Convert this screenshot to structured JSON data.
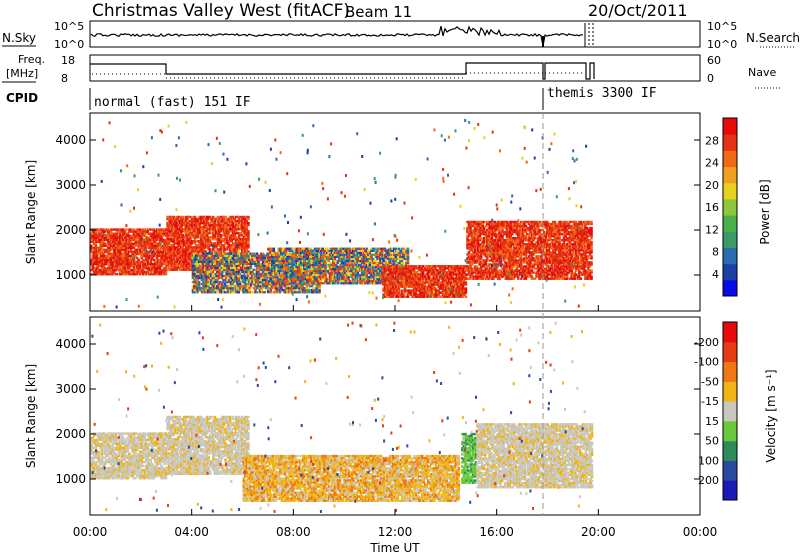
{
  "header": {
    "title": "Christmas Valley West (fitACF)",
    "beam": "Beam 11",
    "date": "20/Oct/2011"
  },
  "top_panels": {
    "nsky": {
      "left_label": "N.Sky",
      "ticks": [
        "10^5",
        "10^0"
      ],
      "right_label": "N.Search",
      "right_ticks": [
        "10^5",
        "10^0"
      ]
    },
    "freq": {
      "left_label_1": "Freq.",
      "left_label_2": "[MHz]",
      "ticks": [
        "18",
        "8"
      ],
      "right_label": "Nave",
      "right_ticks": [
        "60",
        "0"
      ]
    },
    "cpid": {
      "label": "CPID",
      "segments": [
        "normal (fast) 151 IF",
        "themis 3300 IF"
      ]
    }
  },
  "x_axis": {
    "label": "Time UT",
    "ticks": [
      "00:00",
      "04:00",
      "08:00",
      "12:00",
      "16:00",
      "20:00",
      "00:00"
    ]
  },
  "chart_data": [
    {
      "type": "heatmap",
      "panel": "power",
      "ylabel": "Slant Range [km]",
      "yticks": [
        1000,
        2000,
        3000,
        4000
      ],
      "ylim": [
        200,
        4600
      ],
      "xlim_hours": [
        0,
        24
      ],
      "colorbar": {
        "label": "Power [dB]",
        "ticks": [
          4,
          8,
          12,
          16,
          20,
          24,
          28
        ],
        "colors": [
          "#0a0ae6",
          "#1d3fa8",
          "#2b6bb0",
          "#3a9a6a",
          "#4bb04b",
          "#8cc83c",
          "#e6d21e",
          "#f0a020",
          "#f06a14",
          "#e63214",
          "#e60a0a"
        ]
      },
      "regions": [
        {
          "t0": 0.0,
          "t1": 3.0,
          "r0": 1000,
          "r1": 2000,
          "level": "high"
        },
        {
          "t0": 3.0,
          "t1": 6.2,
          "r0": 1100,
          "r1": 2300,
          "level": "high"
        },
        {
          "t0": 4.0,
          "t1": 9.0,
          "r0": 600,
          "r1": 1500,
          "level": "mid"
        },
        {
          "t0": 7.0,
          "t1": 12.5,
          "r0": 800,
          "r1": 1600,
          "level": "mid"
        },
        {
          "t0": 11.5,
          "t1": 14.8,
          "r0": 500,
          "r1": 1200,
          "level": "high"
        },
        {
          "t0": 14.8,
          "t1": 16.5,
          "r0": 900,
          "r1": 2200,
          "level": "high"
        },
        {
          "t0": 16.5,
          "t1": 19.7,
          "r0": 900,
          "r1": 2200,
          "level": "high"
        }
      ]
    },
    {
      "type": "heatmap",
      "panel": "velocity",
      "ylabel": "Slant Range [km]",
      "yticks": [
        1000,
        2000,
        3000,
        4000
      ],
      "ylim": [
        200,
        4600
      ],
      "xlim_hours": [
        0,
        24
      ],
      "colorbar": {
        "label": "Velocity [m s⁻¹]",
        "ticks": [
          200,
          100,
          50,
          15,
          -15,
          -50,
          -100,
          -200
        ],
        "colors": [
          "#1a1ab4",
          "#2a4aa0",
          "#2e8a5a",
          "#6ac83c",
          "#c8c8c0",
          "#f0b414",
          "#f07814",
          "#e63c14",
          "#e60a0a"
        ]
      },
      "regions": [
        {
          "t0": 0.0,
          "t1": 3.0,
          "r0": 1000,
          "r1": 2000,
          "level": "ground"
        },
        {
          "t0": 3.0,
          "t1": 6.2,
          "r0": 1100,
          "r1": 2400,
          "level": "ground"
        },
        {
          "t0": 6.0,
          "t1": 14.5,
          "r0": 500,
          "r1": 1500,
          "level": "neg"
        },
        {
          "t0": 14.6,
          "t1": 15.2,
          "r0": 900,
          "r1": 2000,
          "level": "pos"
        },
        {
          "t0": 15.2,
          "t1": 19.7,
          "r0": 800,
          "r1": 2200,
          "level": "ground"
        }
      ]
    }
  ]
}
